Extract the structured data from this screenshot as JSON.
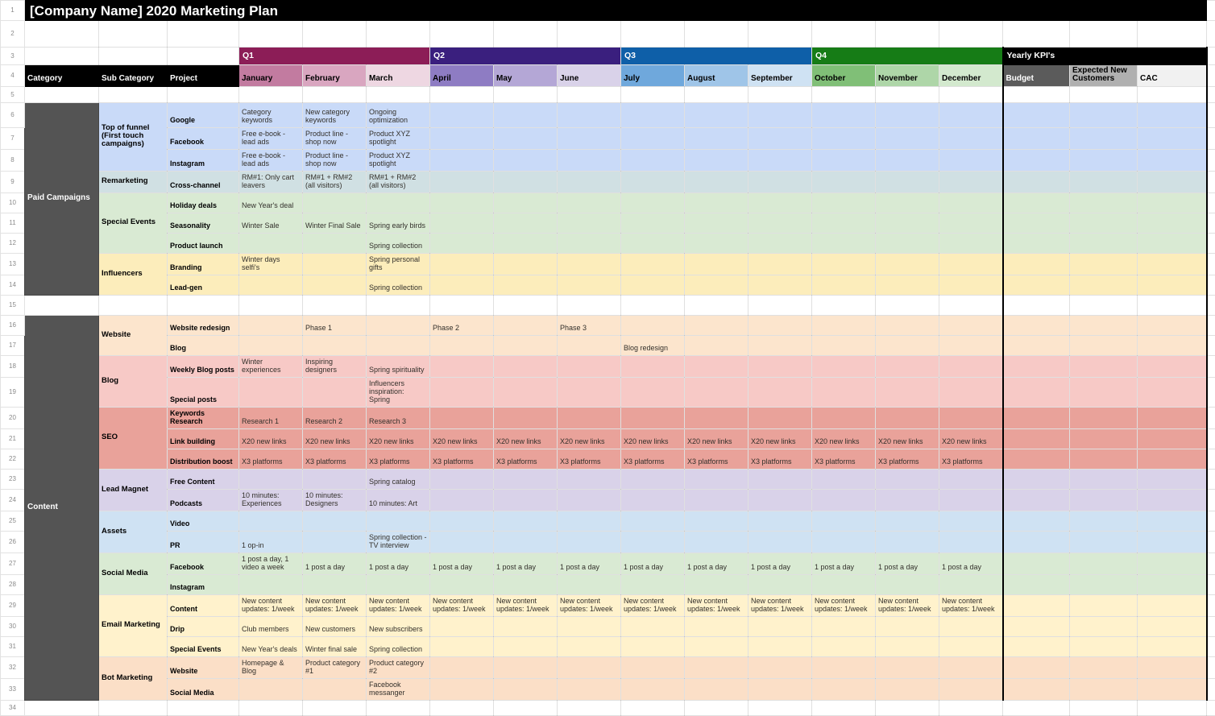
{
  "title": "[Company Name] 2020 Marketing Plan",
  "left_headers": [
    "Category",
    "Sub Category",
    "Project"
  ],
  "quarters": [
    {
      "label": "Q1",
      "color": "#8c1d57",
      "months": [
        {
          "label": "January",
          "color": "#c27ba0"
        },
        {
          "label": "February",
          "color": "#d9a6c0"
        },
        {
          "label": "March",
          "color": "#eed7e2"
        }
      ]
    },
    {
      "label": "Q2",
      "color": "#3a1f7e",
      "months": [
        {
          "label": "April",
          "color": "#8e7cc3"
        },
        {
          "label": "May",
          "color": "#b4a7d6"
        },
        {
          "label": "June",
          "color": "#d9d2e9"
        }
      ]
    },
    {
      "label": "Q3",
      "color": "#0e5fa8",
      "months": [
        {
          "label": "July",
          "color": "#6fa8dc"
        },
        {
          "label": "August",
          "color": "#9fc5e8"
        },
        {
          "label": "September",
          "color": "#cfe2f3"
        }
      ]
    },
    {
      "label": "Q4",
      "color": "#167c16",
      "months": [
        {
          "label": "October",
          "color": "#80bf77"
        },
        {
          "label": "November",
          "color": "#aed6a8"
        },
        {
          "label": "December",
          "color": "#d3e9ce"
        }
      ]
    }
  ],
  "kpi": {
    "header": "Yearly KPI's",
    "columns": [
      {
        "label": "Budget",
        "bg": "#5b5b5b",
        "fg": "#ffffff"
      },
      {
        "label": "Expected New Customers",
        "bg": "#b0b0b0",
        "fg": "#000000"
      },
      {
        "label": "CAC",
        "bg": "#f1f1f1",
        "fg": "#000000"
      }
    ]
  },
  "sections": [
    {
      "name": "Paid Campaigns",
      "bg": "#545454",
      "groups": [
        {
          "label": "Top of funnel (First touch campaigns)",
          "bg": "#c9daf8",
          "rows": [
            {
              "project": "Google",
              "cells": [
                "Category keywords",
                "New category keywords",
                "Ongoing optimization",
                "",
                "",
                "",
                "",
                "",
                "",
                "",
                "",
                ""
              ]
            },
            {
              "project": "Facebook",
              "cells": [
                "Free e-book - lead ads",
                "Product line - shop now",
                "Product XYZ spotlight",
                "",
                "",
                "",
                "",
                "",
                "",
                "",
                "",
                ""
              ]
            },
            {
              "project": "Instagram",
              "cells": [
                "Free e-book - lead ads",
                "Product line - shop now",
                "Product XYZ spotlight",
                "",
                "",
                "",
                "",
                "",
                "",
                "",
                "",
                ""
              ]
            }
          ]
        },
        {
          "label": "Remarketing",
          "bg": "#d0e0e3",
          "rows": [
            {
              "project": "Cross-channel",
              "cells": [
                "RM#1: Only cart leavers",
                "RM#1 + RM#2 (all visitors)",
                "RM#1 + RM#2 (all visitors)",
                "",
                "",
                "",
                "",
                "",
                "",
                "",
                "",
                ""
              ]
            }
          ]
        },
        {
          "label": "Special Events",
          "bg": "#d9ead3",
          "rows": [
            {
              "project": "Holiday deals",
              "cells": [
                "New Year's deal",
                "",
                "",
                "",
                "",
                "",
                "",
                "",
                "",
                "",
                "",
                ""
              ]
            },
            {
              "project": "Seasonality",
              "cells": [
                "Winter Sale",
                "Winter Final Sale",
                "Spring early birds",
                "",
                "",
                "",
                "",
                "",
                "",
                "",
                "",
                ""
              ]
            },
            {
              "project": "Product launch",
              "cells": [
                "",
                "",
                "Spring collection",
                "",
                "",
                "",
                "",
                "",
                "",
                "",
                "",
                ""
              ]
            }
          ]
        },
        {
          "label": "Influencers",
          "bg": "#fcedbb",
          "rows": [
            {
              "project": "Branding",
              "cells": [
                "Winter days selfi's",
                "",
                "Spring personal gifts",
                "",
                "",
                "",
                "",
                "",
                "",
                "",
                "",
                ""
              ]
            },
            {
              "project": "Lead-gen",
              "cells": [
                "",
                "",
                "Spring collection",
                "",
                "",
                "",
                "",
                "",
                "",
                "",
                "",
                ""
              ]
            }
          ]
        }
      ]
    },
    {
      "name": "Content",
      "bg": "#545454",
      "groups": [
        {
          "label": "Website",
          "bg": "#fce5cd",
          "rows": [
            {
              "project": "Website redesign",
              "cells": [
                "",
                "Phase 1",
                "",
                "Phase 2",
                "",
                "Phase 3",
                "",
                "",
                "",
                "",
                "",
                ""
              ]
            },
            {
              "project": "Blog",
              "cells": [
                "",
                "",
                "",
                "",
                "",
                "",
                "Blog redesign",
                "",
                "",
                "",
                "",
                ""
              ]
            }
          ]
        },
        {
          "label": "Blog",
          "bg": "#f7c9c6",
          "rows": [
            {
              "project": "Weekly Blog posts",
              "cells": [
                "Winter experiences",
                "Inspiring designers",
                "Spring spirituality",
                "",
                "",
                "",
                "",
                "",
                "",
                "",
                "",
                ""
              ]
            },
            {
              "project": "Special posts",
              "cells": [
                "",
                "",
                "Influencers inspiration: Spring",
                "",
                "",
                "",
                "",
                "",
                "",
                "",
                "",
                ""
              ]
            }
          ]
        },
        {
          "label": "SEO",
          "bg": "#e9a29a",
          "rows": [
            {
              "project": "Keywords Research",
              "cells": [
                "Research 1",
                "Research 2",
                "Research 3",
                "",
                "",
                "",
                "",
                "",
                "",
                "",
                "",
                ""
              ]
            },
            {
              "project": "Link building",
              "cells": [
                "X20 new links",
                "X20 new links",
                "X20 new links",
                "X20 new links",
                "X20 new links",
                "X20 new links",
                "X20 new links",
                "X20 new links",
                "X20 new links",
                "X20 new links",
                "X20 new links",
                "X20 new links"
              ]
            },
            {
              "project": "Distribution boost",
              "cells": [
                "X3 platforms",
                "X3 platforms",
                "X3 platforms",
                "X3 platforms",
                "X3 platforms",
                "X3 platforms",
                "X3 platforms",
                "X3 platforms",
                "X3 platforms",
                "X3 platforms",
                "X3 platforms",
                "X3 platforms"
              ]
            }
          ]
        },
        {
          "label": "Lead Magnet",
          "bg": "#d9d2e9",
          "rows": [
            {
              "project": "Free Content",
              "cells": [
                "",
                "",
                "Spring catalog",
                "",
                "",
                "",
                "",
                "",
                "",
                "",
                "",
                ""
              ]
            },
            {
              "project": "Podcasts",
              "cells": [
                "10 minutes: Experiences",
                "10 minutes: Designers",
                "10 minutes: Art",
                "",
                "",
                "",
                "",
                "",
                "",
                "",
                "",
                ""
              ]
            }
          ]
        },
        {
          "label": "Assets",
          "bg": "#cfe2f3",
          "rows": [
            {
              "project": "Video",
              "cells": [
                "",
                "",
                "",
                "",
                "",
                "",
                "",
                "",
                "",
                "",
                "",
                ""
              ]
            },
            {
              "project": "PR",
              "cells": [
                "1 op-in",
                "",
                "Spring collection - TV interview",
                "",
                "",
                "",
                "",
                "",
                "",
                "",
                "",
                ""
              ]
            }
          ]
        },
        {
          "label": "Social Media",
          "bg": "#d9ead3",
          "rows": [
            {
              "project": "Facebook",
              "cells": [
                "1 post a day, 1 video a week",
                "1 post a day",
                "1 post a day",
                "1 post a day",
                "1 post a day",
                "1 post a day",
                "1 post a day",
                "1 post a day",
                "1 post a day",
                "1 post a day",
                "1 post a day",
                "1 post a day"
              ]
            },
            {
              "project": "Instagram",
              "cells": [
                "",
                "",
                "",
                "",
                "",
                "",
                "",
                "",
                "",
                "",
                "",
                ""
              ]
            }
          ]
        },
        {
          "label": "Email Marketing",
          "bg": "#fff2cc",
          "rows": [
            {
              "project": "Content",
              "cells": [
                "New content updates: 1/week",
                "New content updates: 1/week",
                "New content updates: 1/week",
                "New content updates: 1/week",
                "New content updates: 1/week",
                "New content updates: 1/week",
                "New content updates: 1/week",
                "New content updates: 1/week",
                "New content updates: 1/week",
                "New content updates: 1/week",
                "New content updates: 1/week",
                "New content updates: 1/week"
              ]
            },
            {
              "project": "Drip",
              "cells": [
                "Club members",
                "New customers",
                "New subscribers",
                "",
                "",
                "",
                "",
                "",
                "",
                "",
                "",
                ""
              ]
            },
            {
              "project": "Special Events",
              "cells": [
                "New Year's deals",
                "Winter final sale",
                "Spring collection",
                "",
                "",
                "",
                "",
                "",
                "",
                "",
                "",
                ""
              ]
            }
          ]
        },
        {
          "label": "Bot Marketing",
          "bg": "#fbdfc7",
          "rows": [
            {
              "project": "Website",
              "cells": [
                "Homepage & Blog",
                "Product category #1",
                "Product category #2",
                "",
                "",
                "",
                "",
                "",
                "",
                "",
                "",
                ""
              ]
            },
            {
              "project": "Social Media",
              "cells": [
                "",
                "",
                "Facebook messanger",
                "",
                "",
                "",
                "",
                "",
                "",
                "",
                "",
                ""
              ]
            }
          ]
        }
      ]
    }
  ]
}
